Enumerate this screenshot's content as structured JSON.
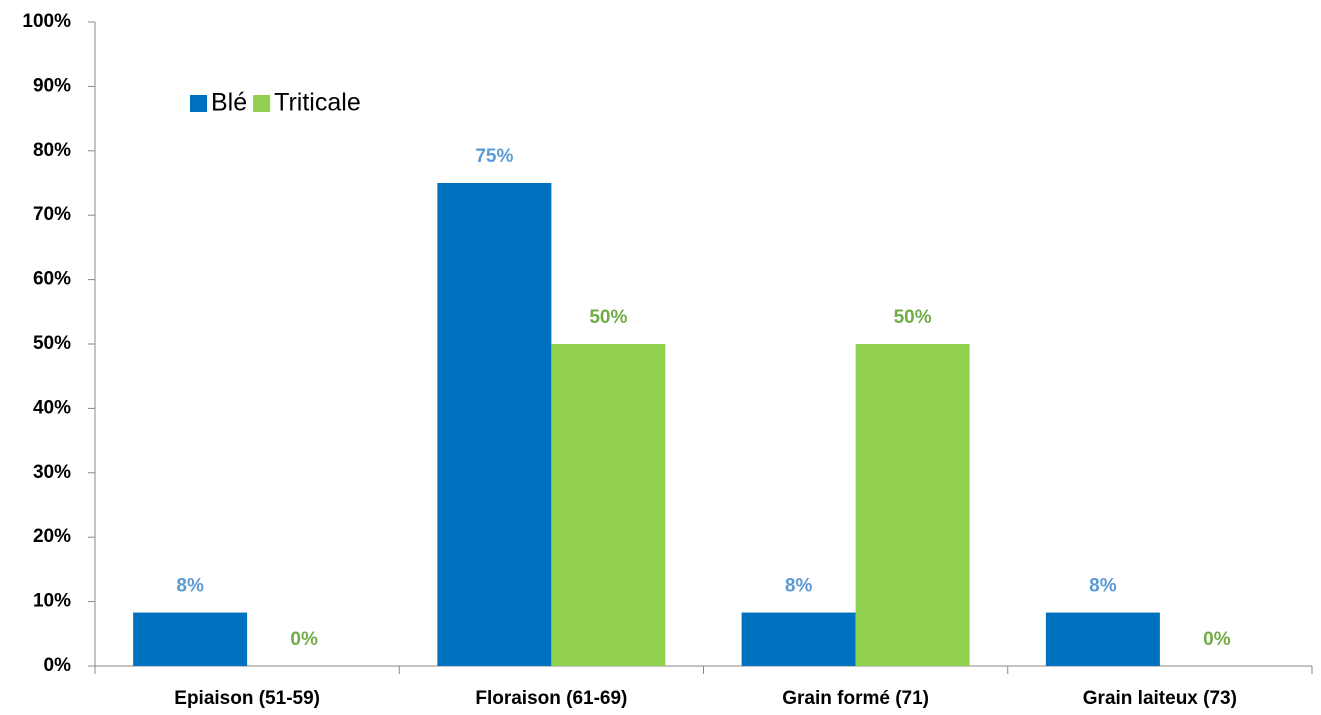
{
  "chart_data": {
    "type": "bar",
    "categories": [
      "Epiaison (51-59)",
      "Floraison (61-69)",
      "Grain formé (71)",
      "Grain laiteux (73)"
    ],
    "series": [
      {
        "name": "Blé",
        "color": "#0070c0",
        "label_color": "#5b9bd5",
        "values": [
          8.3,
          75,
          8.3,
          8.3
        ],
        "value_labels": [
          "8%",
          "75%",
          "8%",
          "8%"
        ]
      },
      {
        "name": "Triticale",
        "color": "#92d050",
        "label_color": "#70ad47",
        "values": [
          0,
          50,
          50,
          0
        ],
        "value_labels": [
          "0%",
          "50%",
          "50%",
          "0%"
        ]
      }
    ],
    "ylim": [
      0,
      100
    ],
    "yticks": [
      {
        "value": 0,
        "label": "0%"
      },
      {
        "value": 10,
        "label": "10%"
      },
      {
        "value": 20,
        "label": "20%"
      },
      {
        "value": 30,
        "label": "30%"
      },
      {
        "value": 40,
        "label": "40%"
      },
      {
        "value": 50,
        "label": "50%"
      },
      {
        "value": 60,
        "label": "60%"
      },
      {
        "value": 70,
        "label": "70%"
      },
      {
        "value": 80,
        "label": "80%"
      },
      {
        "value": 90,
        "label": "90%"
      },
      {
        "value": 100,
        "label": "100%"
      }
    ],
    "grid": false,
    "legend": "top-left"
  }
}
